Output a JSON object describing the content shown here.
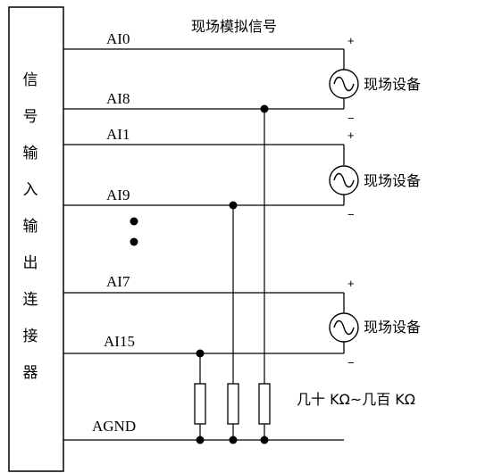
{
  "title": "现场模拟信号",
  "connector": {
    "label_chars": [
      "信",
      "号",
      "输",
      "入",
      "输",
      "出",
      "连",
      "接",
      "器"
    ]
  },
  "channels": {
    "ai0": "AI0",
    "ai8": "AI8",
    "ai1": "AI1",
    "ai9": "AI9",
    "ai7": "AI7",
    "ai15": "AI15",
    "agnd": "AGND"
  },
  "devices": [
    "现场设备",
    "现场设备",
    "现场设备"
  ],
  "polarity": {
    "plus": "+",
    "minus": "−"
  },
  "resistor_range": "几十 KΩ~几百 KΩ",
  "colors": {
    "line": "#000000",
    "background": "#ffffff"
  },
  "icons": {
    "source": "ac-source-icon",
    "resistor": "resistor-icon",
    "junction": "junction-dot-icon"
  }
}
